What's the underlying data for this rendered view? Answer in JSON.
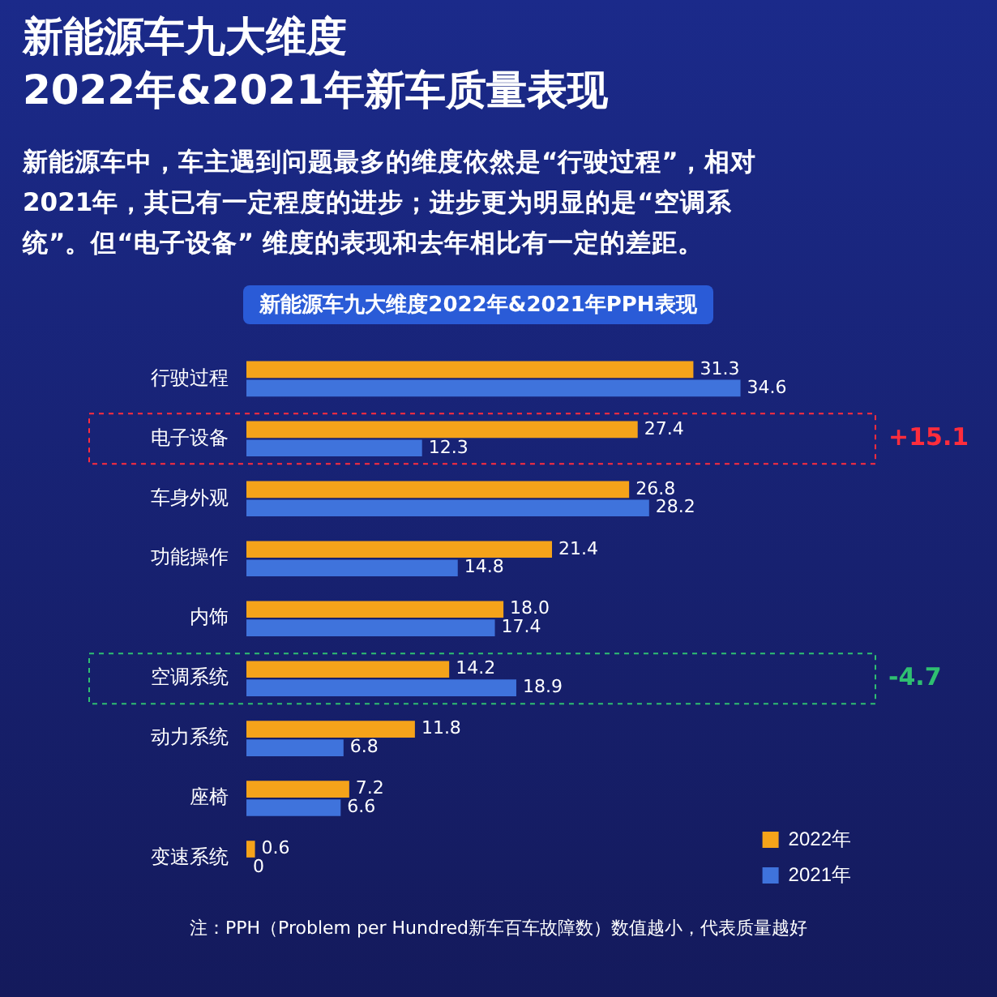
{
  "chart_data": {
    "type": "bar",
    "orientation": "horizontal",
    "title": "新能源车九大维度\n2022年&2021年新车质量表现",
    "subtitle": "新能源车中，车主遇到问题最多的维度依然是“行驶过程”，相对2021年，其已有一定程度的进步；进步更为明显的是“空调系统”。但“电子设备” 维度的表现和去年相比有一定的差距。",
    "categories": [
      "行驶过程",
      "电子设备",
      "车身外观",
      "功能操作",
      "内饰",
      "空调系统",
      "动力系统",
      "座椅",
      "变速系统"
    ],
    "series": [
      {
        "name": "2022年",
        "color": "#f5a31a",
        "values": [
          31.3,
          27.4,
          26.8,
          21.4,
          18.0,
          14.2,
          11.8,
          7.2,
          0.6
        ],
        "value_labels": [
          "31.3",
          "27.4",
          "26.8",
          "21.4",
          "18.0",
          "14.2",
          "11.8",
          "7.2",
          "0.6"
        ]
      },
      {
        "name": "2021年",
        "color": "#3f73dc",
        "values": [
          34.6,
          12.3,
          28.2,
          14.8,
          17.4,
          18.9,
          6.8,
          6.6,
          0
        ],
        "value_labels": [
          "34.6",
          "12.3",
          "28.2",
          "14.8",
          "17.4",
          "18.9",
          "6.8",
          "6.6",
          "0"
        ]
      }
    ],
    "legend": "bottom right",
    "grid": false,
    "annotations": [
      "新能源车九大维度2022年&2021年PPH表现",
      "+15.1",
      "-4.7",
      "注：PPH（Problem per Hundred新车百车故障数）数值越小，代表质量越好"
    ]
  }
}
